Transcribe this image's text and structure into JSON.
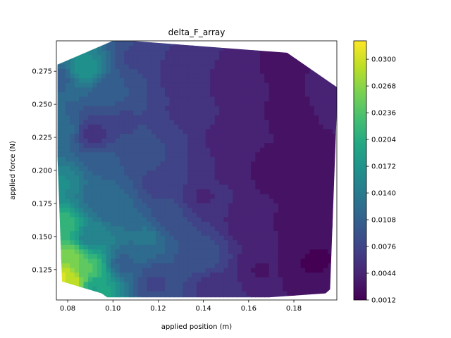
{
  "chart_data": {
    "type": "heatmap",
    "subtype": "filled-contour",
    "title": "delta_F_array",
    "xlabel": "applied position (m)",
    "ylabel": "applied force (N)",
    "xlim": [
      0.075,
      0.199
    ],
    "ylim": [
      0.102,
      0.298
    ],
    "x_ticks": [
      0.08,
      0.1,
      0.12,
      0.14,
      0.16,
      0.18
    ],
    "x_tick_labels": [
      "0.08",
      "0.10",
      "0.12",
      "0.14",
      "0.16",
      "0.18"
    ],
    "y_ticks": [
      0.125,
      0.15,
      0.175,
      0.2,
      0.225,
      0.25,
      0.275
    ],
    "y_tick_labels": [
      "0.125",
      "0.150",
      "0.175",
      "0.200",
      "0.225",
      "0.250",
      "0.275"
    ],
    "colorbar": {
      "colormap": "viridis",
      "min": 0.0012,
      "max": 0.0322,
      "ticks": [
        0.0012,
        0.0044,
        0.0076,
        0.0108,
        0.014,
        0.0172,
        0.0204,
        0.0236,
        0.0268,
        0.03
      ],
      "tick_labels": [
        "0.0012",
        "0.0044",
        "0.0076",
        "0.0108",
        "0.0140",
        "0.0172",
        "0.0204",
        "0.0236",
        "0.0268",
        "0.0300"
      ]
    },
    "grid": false,
    "hull": [
      [
        0.0755,
        0.28
      ],
      [
        0.1,
        0.298
      ],
      [
        0.108,
        0.298
      ],
      [
        0.177,
        0.289
      ],
      [
        0.199,
        0.263
      ],
      [
        0.199,
        0.247
      ],
      [
        0.196,
        0.11
      ],
      [
        0.194,
        0.107
      ],
      [
        0.169,
        0.104
      ],
      [
        0.0975,
        0.104
      ],
      [
        0.095,
        0.107
      ],
      [
        0.0775,
        0.116
      ],
      [
        0.0755,
        0.21
      ]
    ],
    "samples": [
      [
        0.078,
        0.12,
        0.03
      ],
      [
        0.082,
        0.118,
        0.029
      ],
      [
        0.08,
        0.135,
        0.026
      ],
      [
        0.078,
        0.16,
        0.022
      ],
      [
        0.078,
        0.19,
        0.016
      ],
      [
        0.077,
        0.23,
        0.012
      ],
      [
        0.077,
        0.27,
        0.011
      ],
      [
        0.087,
        0.278,
        0.017
      ],
      [
        0.088,
        0.125,
        0.024
      ],
      [
        0.092,
        0.112,
        0.019
      ],
      [
        0.09,
        0.15,
        0.015
      ],
      [
        0.092,
        0.18,
        0.012
      ],
      [
        0.095,
        0.205,
        0.011
      ],
      [
        0.092,
        0.228,
        0.006
      ],
      [
        0.1,
        0.258,
        0.01
      ],
      [
        0.11,
        0.285,
        0.008
      ],
      [
        0.105,
        0.238,
        0.008
      ],
      [
        0.11,
        0.21,
        0.009
      ],
      [
        0.105,
        0.13,
        0.011
      ],
      [
        0.115,
        0.15,
        0.013
      ],
      [
        0.118,
        0.115,
        0.008
      ],
      [
        0.125,
        0.165,
        0.0085
      ],
      [
        0.12,
        0.19,
        0.0075
      ],
      [
        0.13,
        0.245,
        0.0065
      ],
      [
        0.13,
        0.275,
        0.0055
      ],
      [
        0.14,
        0.18,
        0.005
      ],
      [
        0.14,
        0.135,
        0.009
      ],
      [
        0.145,
        0.112,
        0.006
      ],
      [
        0.15,
        0.225,
        0.0045
      ],
      [
        0.155,
        0.265,
        0.004
      ],
      [
        0.16,
        0.16,
        0.004
      ],
      [
        0.165,
        0.125,
        0.0035
      ],
      [
        0.17,
        0.2,
        0.0025
      ],
      [
        0.175,
        0.28,
        0.003
      ],
      [
        0.18,
        0.245,
        0.0025
      ],
      [
        0.185,
        0.16,
        0.002
      ],
      [
        0.19,
        0.13,
        0.0018
      ],
      [
        0.192,
        0.21,
        0.003
      ],
      [
        0.195,
        0.255,
        0.0045
      ],
      [
        0.196,
        0.115,
        0.0025
      ],
      [
        0.15,
        0.2,
        0.005
      ],
      [
        0.1,
        0.17,
        0.012
      ]
    ]
  }
}
